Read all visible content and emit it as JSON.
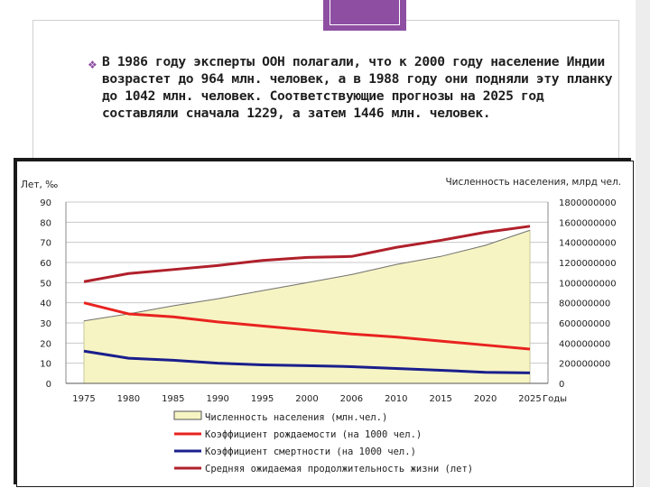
{
  "slide": {
    "bullet_text": "В 1986 году эксперты ООН полагали, что к 2000 году население Индии возрастет до 964 млн. человек, а в 1988 году они подняли эту планку до 1042 млн. человек. Соответствующие прогнозы на 2025 год составляли сначала 1229, а затем 1446 млн. человек.",
    "accent_color": "#8e4fa3",
    "bullet_icon": "diamond-bullet-icon"
  },
  "chart_data": {
    "type": "line",
    "left_axis_title": "Лет, ‰",
    "right_axis_title": "Численность населения, млрд чел.",
    "x_axis_unit": "Годы",
    "categories": [
      "1975",
      "1980",
      "1985",
      "1990",
      "1995",
      "2000",
      "2006",
      "2010",
      "2015",
      "2020",
      "2025"
    ],
    "left_ticks": [
      "0",
      "10",
      "20",
      "30",
      "40",
      "50",
      "60",
      "70",
      "80",
      "90"
    ],
    "right_ticks": [
      "0",
      "200000000",
      "400000000",
      "600000000",
      "800000000",
      "1000000000",
      "1200000000",
      "1400000000",
      "1600000000",
      "1800000000"
    ],
    "ylim_left": [
      0,
      90
    ],
    "ylim_right": [
      0,
      1800000000
    ],
    "grid": true,
    "series": [
      {
        "name": "Численность населения (млн.чел.)",
        "kind": "area",
        "axis": "right",
        "color": "#f7f4c4",
        "values": [
          620000000,
          690000000,
          770000000,
          840000000,
          920000000,
          1000000000,
          1080000000,
          1180000000,
          1260000000,
          1370000000,
          1520000000
        ]
      },
      {
        "name": "Коэффициент рождаемости (на 1000 чел.)",
        "kind": "line",
        "axis": "left",
        "color": "#e8231f",
        "values": [
          40,
          34.5,
          33,
          30.5,
          28.5,
          26.5,
          24.5,
          23,
          21,
          19,
          17
        ]
      },
      {
        "name": "Коэффициент смертности (на 1000 чел.)",
        "kind": "line",
        "axis": "left",
        "color": "#1a1f8c",
        "values": [
          16,
          12.5,
          11.5,
          10,
          9.2,
          8.8,
          8.3,
          7.4,
          6.5,
          5.5,
          5.2
        ]
      },
      {
        "name": "Средняя ожидаемая продолжительность жизни (лет)",
        "kind": "line",
        "axis": "left",
        "color": "#b0202b",
        "values": [
          50.5,
          54.5,
          56.5,
          58.5,
          61,
          62.5,
          63,
          67.5,
          71,
          75,
          78
        ]
      }
    ]
  }
}
